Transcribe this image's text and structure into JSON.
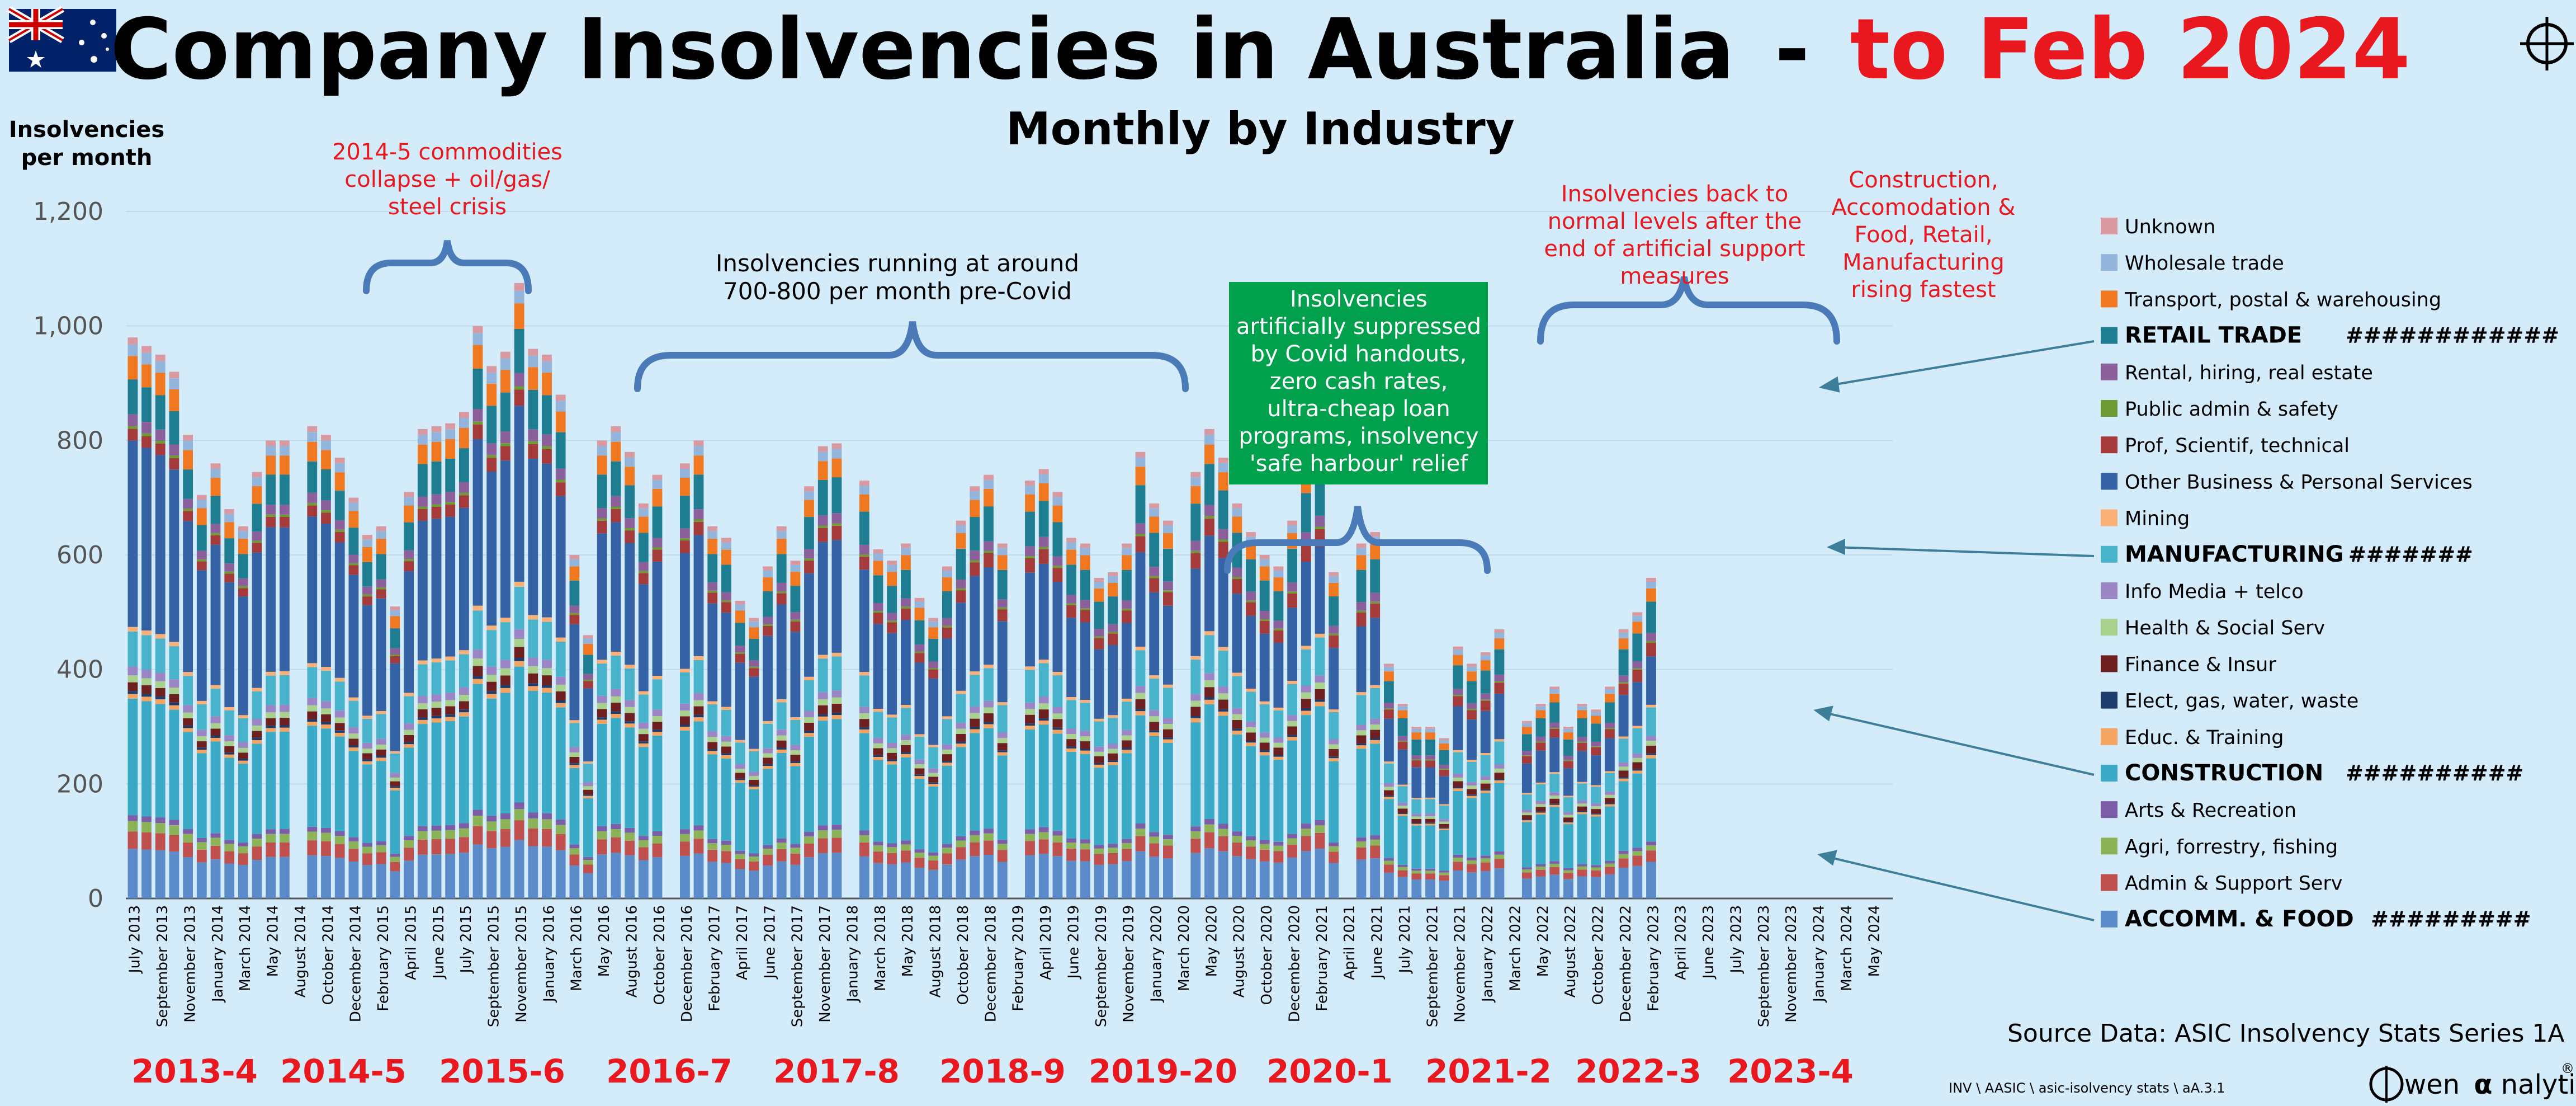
{
  "header": {
    "title_main": "Company Insolvencies in Australia",
    "title_dash": "-",
    "title_red": "to Feb 2024",
    "subtitle": "Monthly by Industry",
    "flag_icon": "australian-flag-icon",
    "crosshair_icon": "crosshair-icon"
  },
  "footer": {
    "source": "Source Data: ASIC Insolvency Stats Series 1A",
    "path": "INV \\ AASIC \\ asic-isolvency stats \\ aA.3.1",
    "brand_prefix": "wen",
    "brand_alpha": "α",
    "brand_suffix": "nalytics",
    "brand_reg": "®"
  },
  "colors": {
    "background": "#d4ecfa",
    "title_red": "#e8181e",
    "annotation_red": "#e8181e",
    "brace": "#4a7ab8",
    "covid_box": "#00a04c",
    "grid": "#bfdcee"
  },
  "chart_data": {
    "type": "bar",
    "stacked": true,
    "ylabel_line1": "Insolvencies",
    "ylabel_line2": "per month",
    "ylim": [
      0,
      1200
    ],
    "yticks": [
      "0",
      "200",
      "400",
      "600",
      "800",
      "1,000",
      "1,200"
    ],
    "grid": true,
    "legend_position": "right",
    "n_months": 128,
    "start_month": "July 2013",
    "x_tick_labels": [
      "July 2013",
      "September 2013",
      "November 2013",
      "January 2014",
      "March 2014",
      "May 2014",
      "August 2014",
      "October 2014",
      "December 2014",
      "February 2015",
      "April 2015",
      "June 2015",
      "July 2015",
      "September 2015",
      "November 2015",
      "January 2016",
      "March 2016",
      "May 2016",
      "August 2016",
      "October 2016",
      "December 2016",
      "February 2017",
      "April 2017",
      "June 2017",
      "September 2017",
      "November 2017",
      "January 2018",
      "March 2018",
      "May 2018",
      "August 2018",
      "October 2018",
      "December 2018",
      "February 2019",
      "April 2019",
      "June 2019",
      "September 2019",
      "November 2019",
      "January 2020",
      "March 2020",
      "May 2020",
      "August 2020",
      "October 2020",
      "December 2020",
      "February 2021",
      "April 2021",
      "June 2021",
      "July 2021",
      "September 2021",
      "November 2021",
      "January 2022",
      "March 2022",
      "May 2022",
      "August 2022",
      "October 2022",
      "December 2022",
      "February 2023",
      "April 2023",
      "June 2023",
      "July 2023",
      "September 2023",
      "November 2023",
      "January 2024",
      "March 2024",
      "May 2024"
    ],
    "fiscal_years": [
      "2013-4",
      "2014-5",
      "2015-6",
      "2016-7",
      "2017-8",
      "2018-9",
      "2019-20",
      "2020-1",
      "2021-2",
      "2022-3",
      "2023-4"
    ],
    "totals": [
      980,
      965,
      950,
      920,
      810,
      705,
      760,
      680,
      650,
      745,
      800,
      800,
      0,
      825,
      810,
      770,
      700,
      635,
      650,
      510,
      710,
      820,
      825,
      830,
      850,
      1000,
      930,
      955,
      1075,
      960,
      950,
      880,
      600,
      460,
      800,
      825,
      780,
      690,
      740,
      0,
      760,
      800,
      650,
      630,
      520,
      490,
      580,
      650,
      590,
      720,
      790,
      795,
      0,
      730,
      610,
      590,
      620,
      525,
      490,
      580,
      660,
      720,
      740,
      620,
      0,
      730,
      750,
      710,
      630,
      620,
      560,
      570,
      620,
      780,
      690,
      660,
      0,
      745,
      820,
      770,
      690,
      640,
      600,
      580,
      660,
      765,
      800,
      570,
      0,
      620,
      640,
      410,
      340,
      300,
      300,
      280,
      440,
      410,
      430,
      470,
      0,
      310,
      340,
      370,
      300,
      340,
      330,
      370,
      470,
      500,
      560,
      0
    ],
    "series": [
      {
        "name": "Unknown",
        "color": "#d89aa0",
        "shares": [
          0.012,
          0.012
        ]
      },
      {
        "name": "Wholesale trade",
        "color": "#93b5dc",
        "shares": [
          0.02,
          0.02
        ]
      },
      {
        "name": "Transport, postal & warehousing",
        "color": "#f07820",
        "shares": [
          0.04,
          0.04
        ]
      },
      {
        "name": "RETAIL TRADE",
        "color": "#1f7d91",
        "bold": true,
        "suffix": "############",
        "shares": [
          0.06,
          0.1
        ]
      },
      {
        "name": "Rental, hiring, real estate",
        "color": "#8a5f9a",
        "shares": [
          0.02,
          0.025
        ]
      },
      {
        "name": "Public admin & safety",
        "color": "#6e9b34",
        "shares": [
          0.005,
          0.005
        ]
      },
      {
        "name": "Prof, Scientif, technical",
        "color": "#a43a3a",
        "shares": [
          0.02,
          0.045
        ]
      },
      {
        "name": "Other Business & Personal Services",
        "color": "#3462a4",
        "shares": [
          0.32,
          0.12
        ]
      },
      {
        "name": "Mining",
        "color": "#fab077",
        "shares": [
          0.008,
          0.008
        ]
      },
      {
        "name": "MANUFACTURING",
        "color": "#4ab3cc",
        "bold": true,
        "suffix": "#######",
        "shares": [
          0.06,
          0.09
        ]
      },
      {
        "name": "Info Media + telco",
        "color": "#9b85c4",
        "shares": [
          0.015,
          0.015
        ]
      },
      {
        "name": "Health & Social Serv",
        "color": "#a9d18e",
        "shares": [
          0.012,
          0.015
        ]
      },
      {
        "name": "Finance & Insur",
        "color": "#6e2020",
        "shares": [
          0.015,
          0.025
        ]
      },
      {
        "name": "Elect, gas, water, waste",
        "color": "#1d3b6b",
        "shares": [
          0.005,
          0.005
        ]
      },
      {
        "name": "Educ. & Training",
        "color": "#f4a460",
        "shares": [
          0.008,
          0.01
        ]
      },
      {
        "name": "CONSTRUCTION",
        "color": "#3aaac7",
        "bold": true,
        "suffix": "##########",
        "shares": [
          0.2,
          0.26
        ]
      },
      {
        "name": "Arts & Recreation",
        "color": "#7b5ea7",
        "shares": [
          0.01,
          0.012
        ]
      },
      {
        "name": "Agri, forrestry, fishing",
        "color": "#8db359",
        "shares": [
          0.018,
          0.015
        ]
      },
      {
        "name": "Admin & Support Serv",
        "color": "#c0504d",
        "shares": [
          0.03,
          0.035
        ]
      },
      {
        "name": "ACCOMM. & FOOD",
        "color": "#5b8bc9",
        "bold": true,
        "suffix": "#########",
        "shares": [
          0.085,
          0.115
        ]
      }
    ],
    "annotations": [
      {
        "id": "ann-commodities",
        "lines": [
          "2014-5 commodities",
          "collapse + oil/gas/",
          "steel crisis"
        ],
        "color": "red"
      },
      {
        "id": "ann-precovid",
        "lines": [
          "Insolvencies  running at around",
          "700-800 per month pre-Covid"
        ],
        "color": "black"
      },
      {
        "id": "ann-covid",
        "lines": [
          "Insolvencies",
          "artificially suppressed",
          "by Covid handouts,",
          "zero cash rates,",
          "ultra-cheap loan",
          "programs, insolvency",
          "'safe harbour' relief"
        ],
        "color": "white-on-green"
      },
      {
        "id": "ann-backnormal",
        "lines": [
          "Insolvencies back to",
          "normal levels after the",
          "end of artificial support",
          "measures"
        ],
        "color": "red"
      },
      {
        "id": "ann-rising",
        "lines": [
          "Construction,",
          "Accomodation &",
          "Food, Retail,",
          "Manufacturing",
          "rising fastest"
        ],
        "color": "red"
      }
    ]
  }
}
